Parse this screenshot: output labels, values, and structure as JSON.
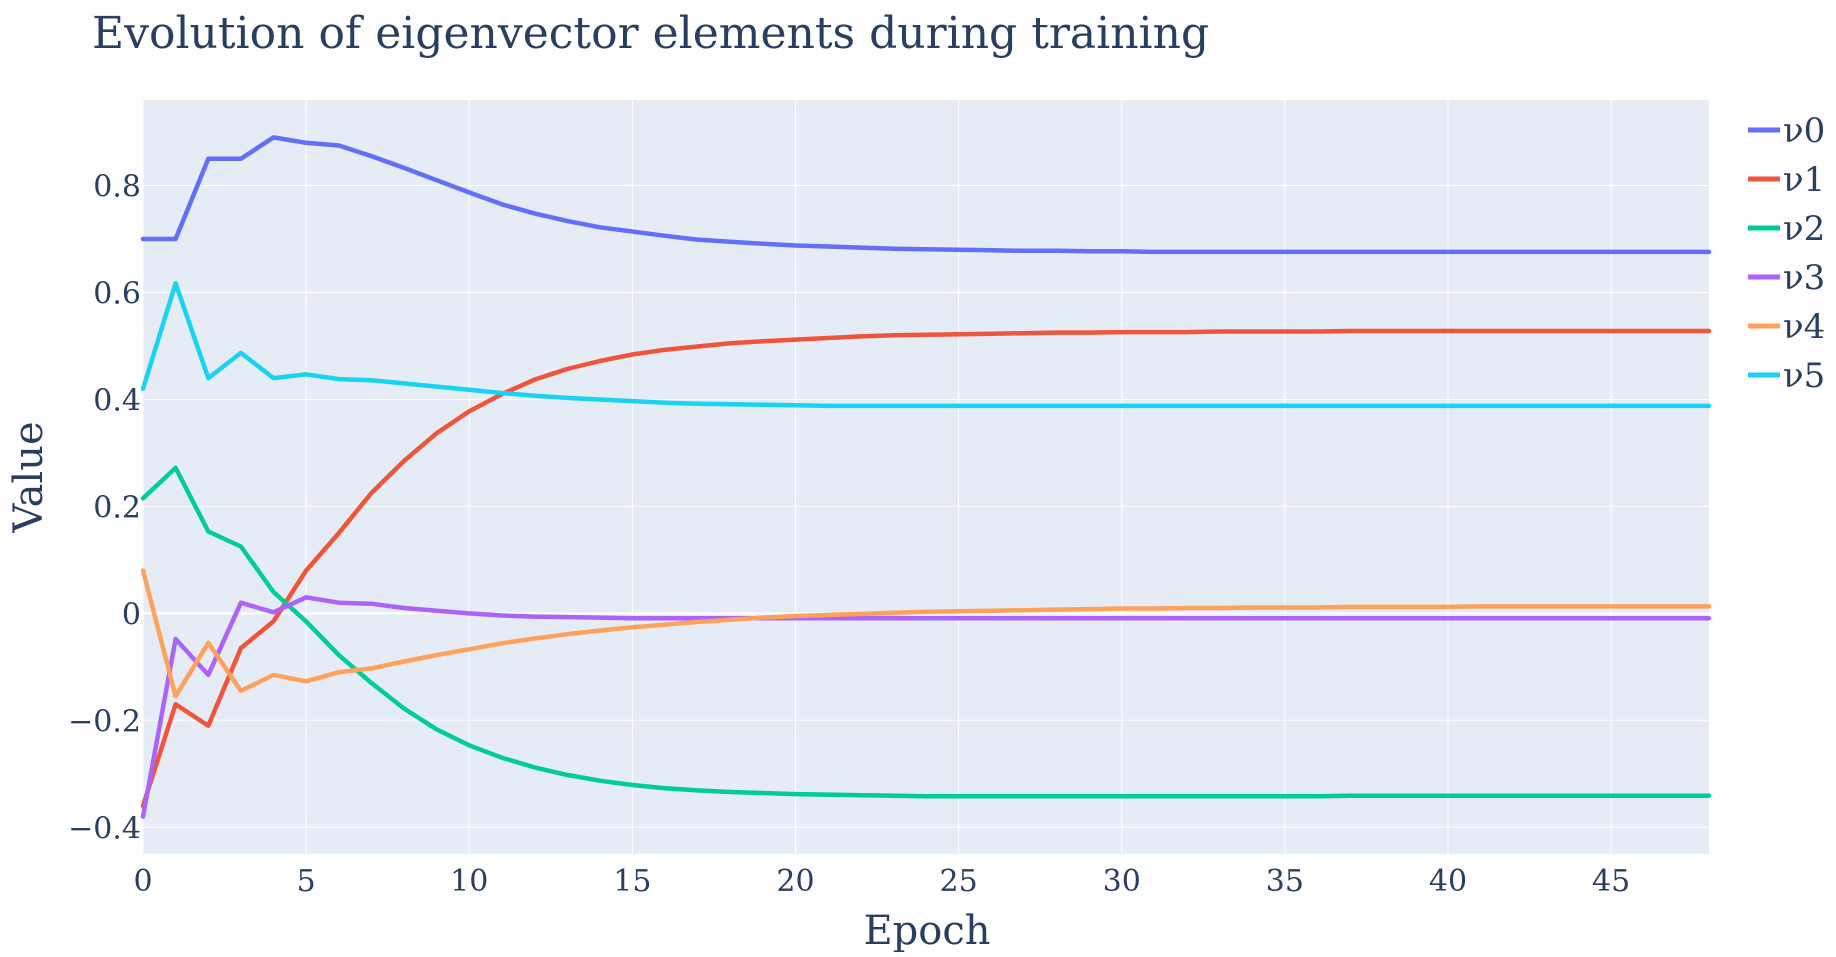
{
  "chart_data": {
    "type": "line",
    "title": "Evolution of eigenvector elements during training",
    "xlabel": "Epoch",
    "ylabel": "Value",
    "xlim": [
      0,
      48
    ],
    "ylim": [
      -0.45,
      0.96
    ],
    "x_ticks": [
      0,
      5,
      10,
      15,
      20,
      25,
      30,
      35,
      40,
      45
    ],
    "x_tick_labels": [
      "0",
      "5",
      "10",
      "15",
      "20",
      "25",
      "30",
      "35",
      "40",
      "45"
    ],
    "y_ticks": [
      -0.4,
      -0.2,
      0,
      0.2,
      0.4,
      0.6,
      0.8
    ],
    "y_tick_labels": [
      "−0.4",
      "−0.2",
      "0",
      "0.2",
      "0.4",
      "0.6",
      "0.8"
    ],
    "grid": true,
    "legend_position": "top-right outside",
    "colors": {
      "plot_background": "#E5ECF6",
      "grid": "#ffffff",
      "text": "#2a3f5f"
    },
    "x": [
      0,
      1,
      2,
      3,
      4,
      5,
      6,
      7,
      8,
      9,
      10,
      11,
      12,
      13,
      14,
      15,
      16,
      17,
      18,
      19,
      20,
      21,
      22,
      23,
      24,
      25,
      26,
      27,
      28,
      29,
      30,
      31,
      32,
      33,
      34,
      35,
      36,
      37,
      38,
      39,
      40,
      41,
      42,
      43,
      44,
      45,
      46,
      47,
      48
    ],
    "series": [
      {
        "name": "ν0",
        "color": "#636efa",
        "values": [
          0.7,
          0.7,
          0.85,
          0.85,
          0.89,
          0.88,
          0.875,
          0.855,
          0.833,
          0.81,
          0.787,
          0.765,
          0.748,
          0.734,
          0.722,
          0.714,
          0.706,
          0.699,
          0.695,
          0.691,
          0.688,
          0.686,
          0.684,
          0.682,
          0.681,
          0.68,
          0.679,
          0.678,
          0.678,
          0.677,
          0.677,
          0.676,
          0.676,
          0.676,
          0.676,
          0.676,
          0.676,
          0.676,
          0.676,
          0.676,
          0.676,
          0.676,
          0.676,
          0.676,
          0.676,
          0.676,
          0.676,
          0.676,
          0.676
        ]
      },
      {
        "name": "ν1",
        "color": "#EF553B",
        "values": [
          -0.36,
          -0.17,
          -0.21,
          -0.065,
          -0.015,
          0.08,
          0.15,
          0.225,
          0.285,
          0.337,
          0.378,
          0.41,
          0.437,
          0.457,
          0.472,
          0.484,
          0.493,
          0.499,
          0.505,
          0.509,
          0.512,
          0.515,
          0.518,
          0.52,
          0.521,
          0.522,
          0.523,
          0.524,
          0.525,
          0.525,
          0.526,
          0.526,
          0.526,
          0.527,
          0.527,
          0.527,
          0.527,
          0.528,
          0.528,
          0.528,
          0.528,
          0.528,
          0.528,
          0.528,
          0.528,
          0.528,
          0.528,
          0.528,
          0.528
        ]
      },
      {
        "name": "ν2",
        "color": "#00cc96",
        "values": [
          0.215,
          0.272,
          0.153,
          0.125,
          0.04,
          -0.015,
          -0.078,
          -0.13,
          -0.178,
          -0.217,
          -0.247,
          -0.27,
          -0.288,
          -0.302,
          -0.313,
          -0.321,
          -0.327,
          -0.331,
          -0.334,
          -0.336,
          -0.338,
          -0.339,
          -0.34,
          -0.341,
          -0.342,
          -0.342,
          -0.342,
          -0.342,
          -0.342,
          -0.342,
          -0.342,
          -0.342,
          -0.342,
          -0.342,
          -0.342,
          -0.342,
          -0.342,
          -0.341,
          -0.341,
          -0.341,
          -0.341,
          -0.341,
          -0.341,
          -0.341,
          -0.341,
          -0.341,
          -0.341,
          -0.341,
          -0.341
        ]
      },
      {
        "name": "ν3",
        "color": "#ab63fa",
        "values": [
          -0.38,
          -0.048,
          -0.115,
          0.02,
          0.002,
          0.03,
          0.02,
          0.018,
          0.01,
          0.005,
          0.0,
          -0.004,
          -0.006,
          -0.007,
          -0.008,
          -0.009,
          -0.009,
          -0.009,
          -0.009,
          -0.009,
          -0.009,
          -0.009,
          -0.009,
          -0.009,
          -0.009,
          -0.009,
          -0.009,
          -0.009,
          -0.009,
          -0.009,
          -0.009,
          -0.009,
          -0.009,
          -0.009,
          -0.009,
          -0.009,
          -0.009,
          -0.009,
          -0.009,
          -0.009,
          -0.009,
          -0.009,
          -0.009,
          -0.009,
          -0.009,
          -0.009,
          -0.009,
          -0.009,
          -0.009
        ]
      },
      {
        "name": "ν4",
        "color": "#FFA15A",
        "values": [
          0.08,
          -0.155,
          -0.055,
          -0.145,
          -0.115,
          -0.127,
          -0.11,
          -0.103,
          -0.09,
          -0.078,
          -0.067,
          -0.056,
          -0.047,
          -0.039,
          -0.032,
          -0.026,
          -0.021,
          -0.016,
          -0.012,
          -0.008,
          -0.005,
          -0.003,
          -0.001,
          0.001,
          0.003,
          0.004,
          0.005,
          0.006,
          0.007,
          0.008,
          0.009,
          0.009,
          0.01,
          0.01,
          0.011,
          0.011,
          0.011,
          0.012,
          0.012,
          0.012,
          0.012,
          0.013,
          0.013,
          0.013,
          0.013,
          0.013,
          0.013,
          0.013,
          0.013
        ]
      },
      {
        "name": "ν5",
        "color": "#19d3f3",
        "values": [
          0.42,
          0.617,
          0.44,
          0.487,
          0.44,
          0.447,
          0.438,
          0.436,
          0.43,
          0.424,
          0.418,
          0.412,
          0.407,
          0.403,
          0.4,
          0.397,
          0.394,
          0.392,
          0.391,
          0.39,
          0.389,
          0.388,
          0.388,
          0.388,
          0.388,
          0.388,
          0.388,
          0.388,
          0.388,
          0.388,
          0.388,
          0.388,
          0.388,
          0.388,
          0.388,
          0.388,
          0.388,
          0.388,
          0.388,
          0.388,
          0.388,
          0.388,
          0.388,
          0.388,
          0.388,
          0.388,
          0.388,
          0.388,
          0.388
        ]
      }
    ]
  }
}
